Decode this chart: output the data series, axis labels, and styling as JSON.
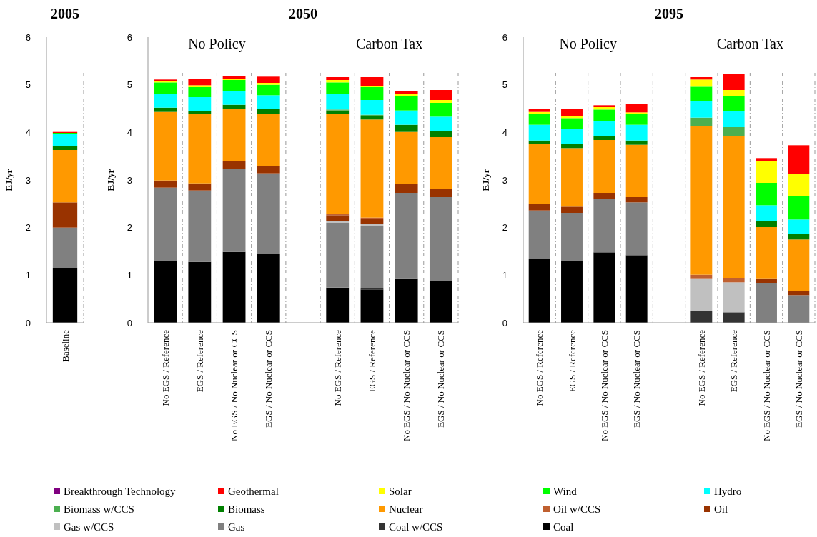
{
  "chart_data": [
    {
      "type": "bar",
      "stacked": true,
      "title": "2005",
      "ylabel": "EJ/yr",
      "ylim": [
        0,
        6
      ],
      "yticks": [
        0,
        1,
        2,
        3,
        4,
        5,
        6
      ],
      "legend": "bottom",
      "categories": [
        "Baseline"
      ],
      "series": [
        {
          "name": "Coal",
          "color": "#000000",
          "values": [
            1.15
          ]
        },
        {
          "name": "Coal w/CCS",
          "color": "#333333",
          "values": [
            0
          ]
        },
        {
          "name": "Gas",
          "color": "#808080",
          "values": [
            0.85
          ]
        },
        {
          "name": "Gas w/CCS",
          "color": "#c0c0c0",
          "values": [
            0
          ]
        },
        {
          "name": "Oil",
          "color": "#993300",
          "values": [
            0.53
          ]
        },
        {
          "name": "Oil w/CCS",
          "color": "#c06030",
          "values": [
            0
          ]
        },
        {
          "name": "Nuclear",
          "color": "#ff9900",
          "values": [
            1.1
          ]
        },
        {
          "name": "Biomass",
          "color": "#008000",
          "values": [
            0.08
          ]
        },
        {
          "name": "Biomass w/CCS",
          "color": "#4caf50",
          "values": [
            0
          ]
        },
        {
          "name": "Hydro",
          "color": "#00ffff",
          "values": [
            0.26
          ]
        },
        {
          "name": "Wind",
          "color": "#00ff00",
          "values": [
            0.02
          ]
        },
        {
          "name": "Solar",
          "color": "#ffff00",
          "values": [
            0
          ]
        },
        {
          "name": "Geothermal",
          "color": "#ff0000",
          "values": [
            0.02
          ]
        },
        {
          "name": "Breakthrough Technology",
          "color": "#800080",
          "values": [
            0
          ]
        }
      ]
    },
    {
      "type": "bar",
      "stacked": true,
      "title": "2050",
      "ylabel": "EJ/yr",
      "ylim": [
        0,
        6
      ],
      "yticks": [
        0,
        1,
        2,
        3,
        4,
        5,
        6
      ],
      "annotations": [
        "No Policy",
        "Carbon Tax"
      ],
      "categories": [
        "No EGS / Reference",
        "EGS / Reference",
        "No EGS / No Nuclear or CCS",
        "EGS / No Nuclear or CCS",
        null,
        "No EGS / Reference",
        "EGS / Reference",
        "No EGS / No Nuclear or CCS",
        "EGS / No Nuclear or CCS"
      ],
      "series": [
        {
          "color": "#000000",
          "values": [
            1.3,
            1.28,
            1.49,
            1.45,
            null,
            0.72,
            0.7,
            0.92,
            0.88
          ]
        },
        {
          "color": "#333333",
          "values": [
            0,
            0,
            0,
            0,
            null,
            0.02,
            0.02,
            0,
            0
          ]
        },
        {
          "color": "#808080",
          "values": [
            1.54,
            1.5,
            1.74,
            1.69,
            null,
            1.36,
            1.31,
            1.81,
            1.76
          ]
        },
        {
          "color": "#c0c0c0",
          "values": [
            0,
            0,
            0,
            0,
            null,
            0.03,
            0.04,
            0,
            0
          ]
        },
        {
          "color": "#993300",
          "values": [
            0.15,
            0.15,
            0.16,
            0.16,
            null,
            0.13,
            0.12,
            0.19,
            0.17
          ]
        },
        {
          "color": "#c06030",
          "values": [
            0,
            0,
            0,
            0,
            null,
            0.02,
            0.02,
            0,
            0
          ]
        },
        {
          "color": "#ff9900",
          "values": [
            1.44,
            1.45,
            1.1,
            1.09,
            null,
            2.11,
            2.06,
            1.09,
            1.09
          ]
        },
        {
          "color": "#008000",
          "values": [
            0.09,
            0.07,
            0.09,
            0.1,
            null,
            0.07,
            0.08,
            0.15,
            0.13
          ]
        },
        {
          "color": "#4caf50",
          "values": [
            0,
            0,
            0,
            0,
            null,
            0.02,
            0.02,
            0,
            0
          ]
        },
        {
          "color": "#00ffff",
          "values": [
            0.29,
            0.29,
            0.29,
            0.29,
            null,
            0.32,
            0.31,
            0.3,
            0.3
          ]
        },
        {
          "color": "#00ff00",
          "values": [
            0.24,
            0.21,
            0.23,
            0.22,
            null,
            0.25,
            0.27,
            0.3,
            0.29
          ]
        },
        {
          "color": "#ffff00",
          "values": [
            0.02,
            0.04,
            0.03,
            0.04,
            null,
            0.05,
            0.03,
            0.05,
            0.06
          ]
        },
        {
          "color": "#ff0000",
          "values": [
            0.04,
            0.13,
            0.06,
            0.13,
            null,
            0.06,
            0.18,
            0.06,
            0.21
          ]
        },
        {
          "color": "#800080",
          "values": [
            0,
            0,
            0,
            0,
            null,
            0,
            0,
            0,
            0
          ]
        }
      ]
    },
    {
      "type": "bar",
      "stacked": true,
      "title": "2095",
      "ylabel": "EJ/yr",
      "ylim": [
        0,
        6
      ],
      "yticks": [
        0,
        1,
        2,
        3,
        4,
        5,
        6
      ],
      "annotations": [
        "No Policy",
        "Carbon Tax"
      ],
      "categories": [
        "No EGS / Reference",
        "EGS / Reference",
        "No EGS / No Nuclear or CCS",
        "EGS / No Nuclear or CCS",
        null,
        "No EGS / Reference",
        "EGS / Reference",
        "No EGS / No Nuclear or CCS",
        "EGS / No Nuclear or CCS"
      ],
      "series": [
        {
          "color": "#000000",
          "values": [
            1.34,
            1.3,
            1.48,
            1.42,
            null,
            0,
            0,
            0,
            0
          ]
        },
        {
          "color": "#333333",
          "values": [
            0,
            0,
            0,
            0,
            null,
            0.25,
            0.22,
            0,
            0
          ]
        },
        {
          "color": "#808080",
          "values": [
            1.02,
            1.01,
            1.13,
            1.11,
            null,
            0,
            0,
            0.84,
            0.58
          ]
        },
        {
          "color": "#c0c0c0",
          "values": [
            0,
            0,
            0,
            0,
            null,
            0.67,
            0.63,
            0,
            0
          ]
        },
        {
          "color": "#993300",
          "values": [
            0.13,
            0.13,
            0.12,
            0.11,
            null,
            0,
            0,
            0.08,
            0.08
          ]
        },
        {
          "color": "#c06030",
          "values": [
            0,
            0,
            0,
            0,
            null,
            0.09,
            0.08,
            0,
            0
          ]
        },
        {
          "color": "#ff9900",
          "values": [
            1.27,
            1.23,
            1.11,
            1.1,
            null,
            3.12,
            2.99,
            1.09,
            1.09
          ]
        },
        {
          "color": "#008000",
          "values": [
            0.07,
            0.09,
            0.09,
            0.09,
            null,
            0,
            0,
            0.13,
            0.11
          ]
        },
        {
          "color": "#4caf50",
          "values": [
            0,
            0,
            0,
            0,
            null,
            0.18,
            0.19,
            0,
            0
          ]
        },
        {
          "color": "#00ffff",
          "values": [
            0.33,
            0.31,
            0.31,
            0.33,
            null,
            0.34,
            0.33,
            0.33,
            0.31
          ]
        },
        {
          "color": "#00ff00",
          "values": [
            0.23,
            0.23,
            0.24,
            0.23,
            null,
            0.31,
            0.32,
            0.47,
            0.49
          ]
        },
        {
          "color": "#ffff00",
          "values": [
            0.04,
            0.04,
            0.05,
            0.03,
            null,
            0.15,
            0.13,
            0.46,
            0.46
          ]
        },
        {
          "color": "#ff0000",
          "values": [
            0.07,
            0.16,
            0.04,
            0.17,
            null,
            0.05,
            0.33,
            0.06,
            0.61
          ]
        },
        {
          "color": "#800080",
          "values": [
            0,
            0,
            0,
            0,
            null,
            0,
            0,
            0,
            0
          ]
        }
      ]
    }
  ]
}
